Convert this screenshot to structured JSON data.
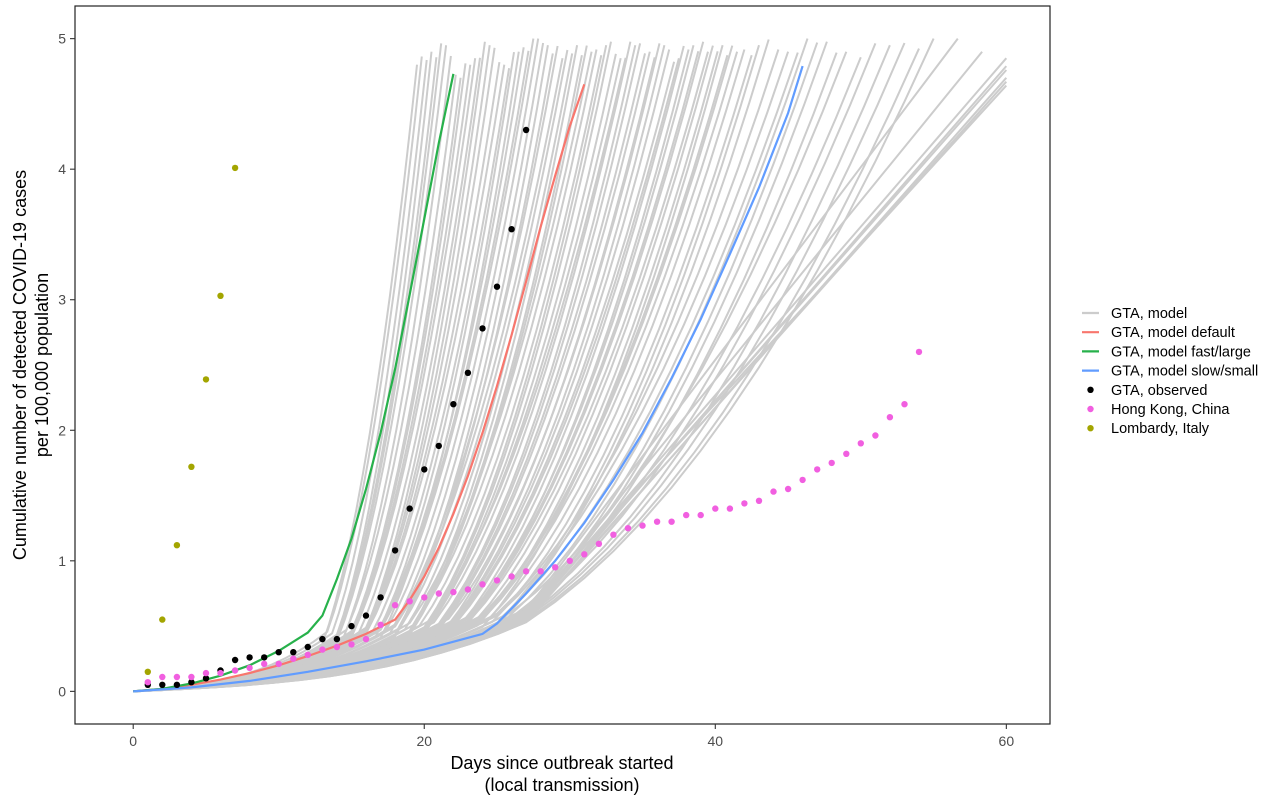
{
  "chart_data": {
    "type": "line",
    "title": "",
    "xlabel_line1": "Days since outbreak started",
    "xlabel_line2": "(local transmission)",
    "ylabel_line1": "Cumulative number of detected COVID-19 cases",
    "ylabel_line2": "per 100,000 population",
    "xlim": [
      -4,
      63
    ],
    "ylim": [
      -0.25,
      5.25
    ],
    "x_ticks": [
      0,
      20,
      40,
      60
    ],
    "y_ticks": [
      0,
      1,
      2,
      3,
      4,
      5
    ],
    "x_tick_labels": [
      "0",
      "20",
      "40",
      "60"
    ],
    "y_tick_labels": [
      "0",
      "1",
      "2",
      "3",
      "4",
      "5"
    ],
    "grid": false,
    "legend_position": "right",
    "legend": [
      {
        "label": "GTA, model",
        "kind": "line",
        "color": "#cccccc"
      },
      {
        "label": "GTA, model default",
        "kind": "line",
        "color": "#f8766d"
      },
      {
        "label": "GTA, model fast/large",
        "kind": "line",
        "color": "#27b14b"
      },
      {
        "label": "GTA, model slow/small",
        "kind": "line",
        "color": "#619cff"
      },
      {
        "label": "GTA, observed",
        "kind": "point",
        "color": "#000000"
      },
      {
        "label": "Hong Kong, China",
        "kind": "point",
        "color": "#f15fe0"
      },
      {
        "label": "Lombardy, Italy",
        "kind": "point",
        "color": "#a3a500"
      }
    ],
    "model_ensemble": {
      "name": "GTA, model",
      "color": "#cccccc",
      "note_range": "approximately 90 simulated trajectories; kink day between 12 and 27; end day between 19 and 60; end value between 4.6 and 5.0",
      "curves": [
        {
          "kink_day": 13,
          "end_day": 19.5,
          "end_value": 4.8
        },
        {
          "kink_day": 14,
          "end_day": 20.5,
          "end_value": 4.9
        },
        {
          "kink_day": 14,
          "end_day": 21.5,
          "end_value": 4.95
        },
        {
          "kink_day": 15,
          "end_day": 22.5,
          "end_value": 4.7
        },
        {
          "kink_day": 15,
          "end_day": 23.5,
          "end_value": 4.85
        },
        {
          "kink_day": 16,
          "end_day": 24.5,
          "end_value": 4.95
        },
        {
          "kink_day": 16,
          "end_day": 25.5,
          "end_value": 4.8
        },
        {
          "kink_day": 17,
          "end_day": 26.5,
          "end_value": 4.9
        },
        {
          "kink_day": 17,
          "end_day": 27.5,
          "end_value": 5.0
        },
        {
          "kink_day": 18,
          "end_day": 28.5,
          "end_value": 4.95
        },
        {
          "kink_day": 18,
          "end_day": 29.5,
          "end_value": 4.85
        },
        {
          "kink_day": 19,
          "end_day": 30.5,
          "end_value": 4.95
        },
        {
          "kink_day": 19,
          "end_day": 31.5,
          "end_value": 4.9
        },
        {
          "kink_day": 20,
          "end_day": 32.5,
          "end_value": 4.95
        },
        {
          "kink_day": 20,
          "end_day": 33.5,
          "end_value": 4.85
        },
        {
          "kink_day": 21,
          "end_day": 34.5,
          "end_value": 4.95
        },
        {
          "kink_day": 21,
          "end_day": 35.5,
          "end_value": 4.9
        },
        {
          "kink_day": 22,
          "end_day": 36.5,
          "end_value": 4.95
        },
        {
          "kink_day": 22,
          "end_day": 37.5,
          "end_value": 4.85
        },
        {
          "kink_day": 23,
          "end_day": 38.5,
          "end_value": 4.95
        },
        {
          "kink_day": 23,
          "end_day": 39.5,
          "end_value": 4.9
        },
        {
          "kink_day": 24,
          "end_day": 40.5,
          "end_value": 4.95
        },
        {
          "kink_day": 24,
          "end_day": 41.5,
          "end_value": 4.9
        },
        {
          "kink_day": 25,
          "end_day": 43,
          "end_value": 4.95
        },
        {
          "kink_day": 25,
          "end_day": 45,
          "end_value": 4.9
        },
        {
          "kink_day": 26,
          "end_day": 47,
          "end_value": 4.97
        },
        {
          "kink_day": 26,
          "end_day": 49,
          "end_value": 4.9
        },
        {
          "kink_day": 27,
          "end_day": 52,
          "end_value": 4.95
        },
        {
          "kink_day": 27,
          "end_day": 55,
          "end_value": 5.0
        },
        {
          "kink_day": 27,
          "end_day": 60,
          "end_value": 4.85
        },
        {
          "kink_day": 27,
          "end_day": 60,
          "end_value": 4.67
        }
      ]
    },
    "series": [
      {
        "name": "GTA, model default",
        "kind": "line",
        "color": "#f8766d",
        "x": [
          0,
          2,
          4,
          6,
          8,
          10,
          12,
          14,
          16,
          18,
          19,
          20,
          21,
          22,
          23,
          24,
          25,
          26,
          27,
          28,
          29,
          30,
          31
        ],
        "y": [
          0,
          0.02,
          0.05,
          0.09,
          0.14,
          0.2,
          0.27,
          0.35,
          0.44,
          0.55,
          0.7,
          0.88,
          1.1,
          1.36,
          1.65,
          1.98,
          2.34,
          2.73,
          3.14,
          3.56,
          3.95,
          4.33,
          4.65
        ]
      },
      {
        "name": "GTA, model fast/large",
        "kind": "line",
        "color": "#27b14b",
        "x": [
          0,
          2,
          4,
          6,
          8,
          10,
          12,
          13,
          14,
          15,
          16,
          17,
          18,
          19,
          20,
          21,
          22
        ],
        "y": [
          0,
          0.02,
          0.06,
          0.12,
          0.2,
          0.31,
          0.45,
          0.58,
          0.86,
          1.17,
          1.55,
          1.98,
          2.47,
          3.04,
          3.62,
          4.2,
          4.73
        ]
      },
      {
        "name": "GTA, model slow/small",
        "kind": "line",
        "color": "#619cff",
        "x": [
          0,
          4,
          8,
          12,
          16,
          20,
          24,
          25,
          27,
          29,
          31,
          33,
          35,
          37,
          39,
          41,
          43,
          45,
          46
        ],
        "y": [
          0,
          0.03,
          0.08,
          0.15,
          0.23,
          0.32,
          0.44,
          0.52,
          0.75,
          1.0,
          1.29,
          1.62,
          1.98,
          2.4,
          2.85,
          3.35,
          3.86,
          4.43,
          4.79
        ]
      },
      {
        "name": "GTA, observed",
        "kind": "point",
        "color": "#000000",
        "x": [
          1,
          2,
          3,
          4,
          5,
          6,
          7,
          8,
          9,
          10,
          11,
          12,
          13,
          14,
          15,
          16,
          17,
          18,
          19,
          20,
          21,
          22,
          23,
          24,
          25,
          26,
          27
        ],
        "y": [
          0.05,
          0.05,
          0.05,
          0.07,
          0.1,
          0.16,
          0.24,
          0.26,
          0.26,
          0.3,
          0.3,
          0.34,
          0.4,
          0.4,
          0.5,
          0.58,
          0.72,
          1.08,
          1.4,
          1.7,
          1.88,
          2.2,
          2.44,
          2.78,
          3.1,
          3.54,
          4.3
        ]
      },
      {
        "name": "Hong Kong, China",
        "kind": "point",
        "color": "#f15fe0",
        "x": [
          1,
          2,
          3,
          4,
          5,
          6,
          7,
          8,
          9,
          10,
          11,
          12,
          13,
          14,
          15,
          16,
          17,
          18,
          19,
          20,
          21,
          22,
          23,
          24,
          25,
          26,
          27,
          28,
          29,
          30,
          31,
          32,
          33,
          34,
          35,
          36,
          37,
          38,
          39,
          40,
          41,
          42,
          43,
          44,
          45,
          46,
          47,
          48,
          49,
          50,
          51,
          52,
          53,
          54
        ],
        "y": [
          0.07,
          0.11,
          0.11,
          0.11,
          0.14,
          0.14,
          0.16,
          0.18,
          0.21,
          0.21,
          0.25,
          0.28,
          0.32,
          0.34,
          0.36,
          0.4,
          0.51,
          0.66,
          0.69,
          0.72,
          0.75,
          0.76,
          0.78,
          0.82,
          0.85,
          0.88,
          0.92,
          0.92,
          0.95,
          1.0,
          1.05,
          1.13,
          1.2,
          1.25,
          1.27,
          1.3,
          1.3,
          1.35,
          1.35,
          1.4,
          1.4,
          1.44,
          1.46,
          1.53,
          1.55,
          1.62,
          1.7,
          1.75,
          1.82,
          1.9,
          1.96,
          2.1,
          2.2,
          2.6
        ]
      },
      {
        "name": "Lombardy, Italy",
        "kind": "point",
        "color": "#a3a500",
        "x": [
          1,
          2,
          3,
          4,
          5,
          6,
          7
        ],
        "y": [
          0.15,
          0.55,
          1.12,
          1.72,
          2.39,
          3.03,
          4.01
        ]
      }
    ]
  }
}
